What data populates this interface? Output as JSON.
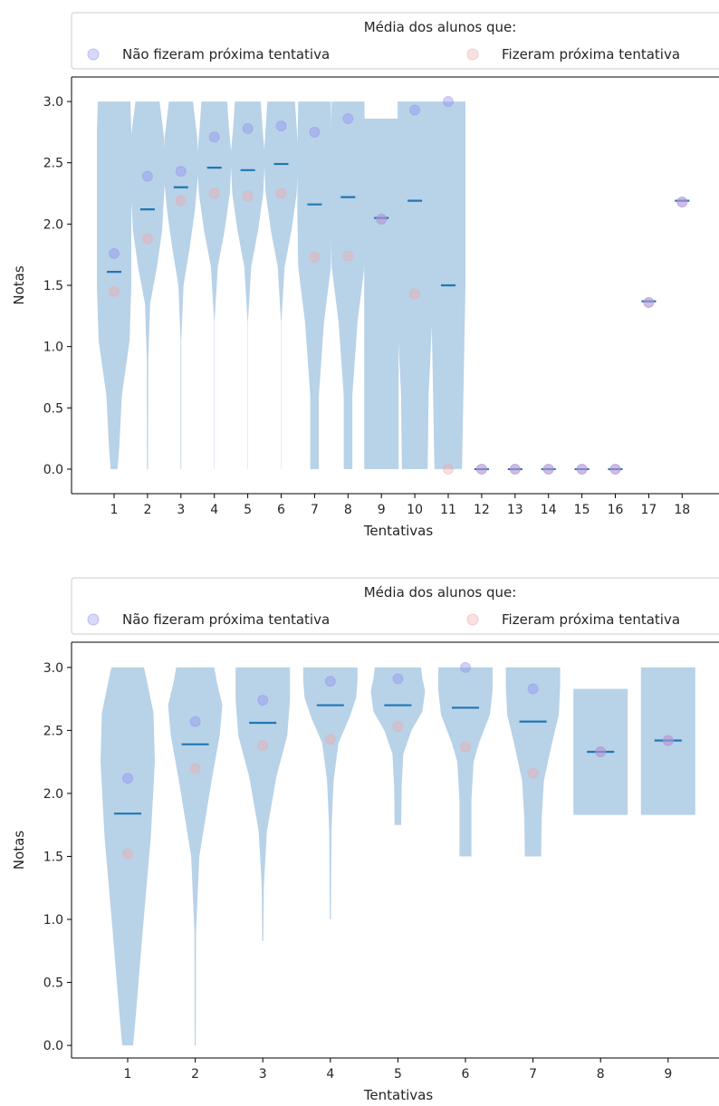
{
  "colors": {
    "violin_fill": "#b8d2e8",
    "mean_line": "#1f77b4",
    "not_next_marker": "#8f8ff0",
    "next_marker": "#f2a7a7",
    "axis": "#000000"
  },
  "chart_data": [
    {
      "type": "violin",
      "xlabel": "Tentativas",
      "ylabel": "Notas",
      "ylim": [
        -0.2,
        3.2
      ],
      "yticks": [
        "0.0",
        "0.5",
        "1.0",
        "1.5",
        "2.0",
        "2.5",
        "3.0"
      ],
      "xticks": [
        "1",
        "2",
        "3",
        "4",
        "5",
        "6",
        "7",
        "8",
        "9",
        "10",
        "11",
        "12",
        "13",
        "14",
        "15",
        "16",
        "17",
        "18"
      ],
      "legend": {
        "title": "Média dos alunos que:",
        "entries": [
          "Não fizeram próxima tentativa",
          "Fizeram próxima tentativa"
        ],
        "placement": "top"
      },
      "series": [
        {
          "name": "Não fizeram próxima tentativa",
          "values": [
            1.76,
            2.39,
            2.43,
            2.71,
            2.78,
            2.8,
            2.75,
            2.86,
            2.04,
            2.93,
            3.0,
            0.0,
            0.0,
            0.0,
            0.0,
            0.0,
            1.36,
            2.18
          ]
        },
        {
          "name": "Fizeram próxima tentativa",
          "values": [
            1.45,
            1.88,
            2.19,
            2.25,
            2.23,
            2.25,
            1.73,
            1.74,
            2.04,
            1.43,
            0.0,
            0.0,
            0.0,
            0.0,
            0.0,
            0.0,
            1.36,
            2.18
          ]
        }
      ],
      "means": [
        1.61,
        2.12,
        2.3,
        2.46,
        2.44,
        2.49,
        2.16,
        2.22,
        2.05,
        2.19,
        1.5,
        0.0,
        0.0,
        0.0,
        0.0,
        0.0,
        1.37,
        2.19
      ],
      "distributions": [
        {
          "min": 0.0,
          "max": 3.0
        },
        {
          "min": 0.0,
          "max": 3.0
        },
        {
          "min": 0.0,
          "max": 3.0
        },
        {
          "min": 0.0,
          "max": 3.0
        },
        {
          "min": 0.0,
          "max": 3.0
        },
        {
          "min": 0.0,
          "max": 3.0
        },
        {
          "min": 0.0,
          "max": 3.0
        },
        {
          "min": 0.0,
          "max": 3.0
        },
        {
          "min": 0.0,
          "max": 2.86
        },
        {
          "min": 0.0,
          "max": 3.0
        },
        {
          "min": 0.0,
          "max": 3.0
        },
        {
          "min": 0.0,
          "max": 0.0
        },
        {
          "min": 0.0,
          "max": 0.0
        },
        {
          "min": 0.0,
          "max": 0.0
        },
        {
          "min": 0.0,
          "max": 0.0
        },
        {
          "min": 0.0,
          "max": 0.0
        },
        {
          "min": 1.37,
          "max": 1.37
        },
        {
          "min": 2.19,
          "max": 2.19
        }
      ]
    },
    {
      "type": "violin",
      "xlabel": "Tentativas",
      "ylabel": "Notas",
      "ylim": [
        -0.1,
        3.2
      ],
      "yticks": [
        "0.0",
        "0.5",
        "1.0",
        "1.5",
        "2.0",
        "2.5",
        "3.0"
      ],
      "xticks": [
        "1",
        "2",
        "3",
        "4",
        "5",
        "6",
        "7",
        "8",
        "9"
      ],
      "legend": {
        "title": "Média dos alunos que:",
        "entries": [
          "Não fizeram próxima tentativa",
          "Fizeram próxima tentativa"
        ],
        "placement": "top"
      },
      "series": [
        {
          "name": "Não fizeram próxima tentativa",
          "values": [
            2.12,
            2.57,
            2.74,
            2.89,
            2.91,
            3.0,
            2.83,
            2.33,
            2.42
          ]
        },
        {
          "name": "Fizeram próxima tentativa",
          "values": [
            1.52,
            2.2,
            2.38,
            2.43,
            2.53,
            2.37,
            2.16,
            2.33,
            2.42
          ]
        }
      ],
      "means": [
        1.84,
        2.39,
        2.56,
        2.7,
        2.7,
        2.68,
        2.57,
        2.33,
        2.42
      ],
      "distributions": [
        {
          "min": 0.0,
          "max": 3.0
        },
        {
          "min": 0.0,
          "max": 3.0
        },
        {
          "min": 0.83,
          "max": 3.0
        },
        {
          "min": 1.0,
          "max": 3.0
        },
        {
          "min": 1.75,
          "max": 3.0
        },
        {
          "min": 1.5,
          "max": 3.0
        },
        {
          "min": 1.5,
          "max": 3.0
        },
        {
          "min": 1.83,
          "max": 2.83
        },
        {
          "min": 1.83,
          "max": 3.0
        }
      ]
    }
  ]
}
